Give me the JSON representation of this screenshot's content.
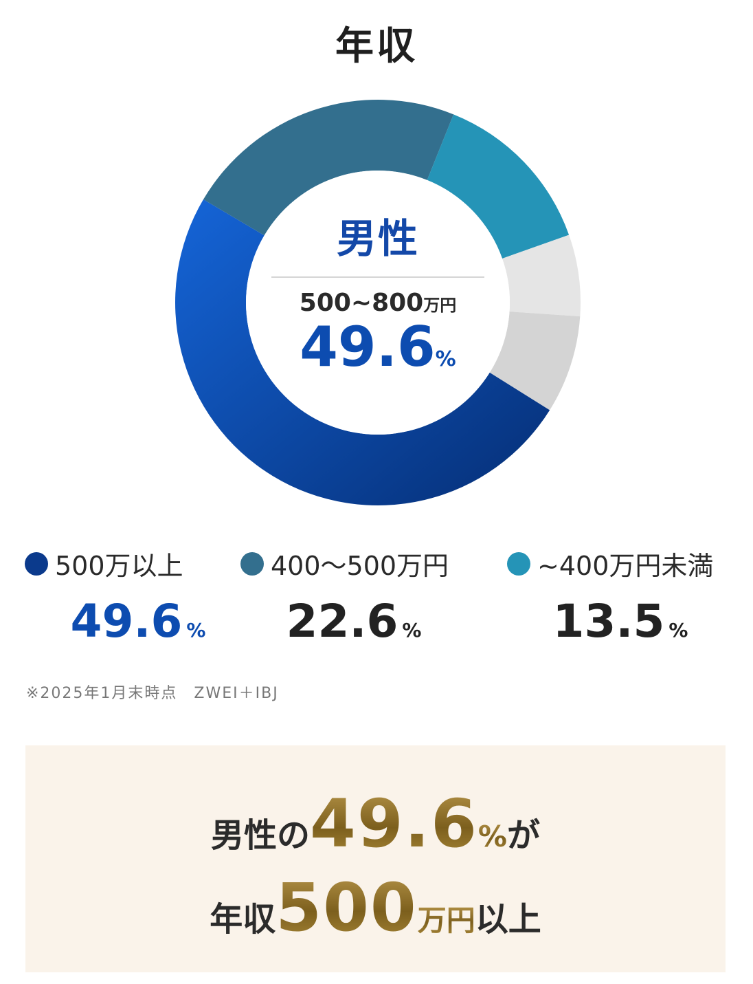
{
  "page": {
    "title": "年収"
  },
  "chart_data": {
    "type": "pie",
    "variant": "donut",
    "segments": [
      {
        "label": "500万以上",
        "value": 49.6,
        "color": "#0b3a8c",
        "legend": true
      },
      {
        "label": "400〜500万円",
        "value": 22.6,
        "color": "#336f8e",
        "legend": true
      },
      {
        "label": "~400万円未満",
        "value": 13.5,
        "color": "#2594b7",
        "legend": true
      },
      {
        "label": "",
        "value": 6.5,
        "color": "#e5e5e5",
        "legend": false
      },
      {
        "label": "",
        "value": 7.8,
        "color": "#d4d4d4",
        "legend": false
      }
    ]
  },
  "center": {
    "gender": "男性",
    "range": "500~800",
    "range_unit": "万円",
    "percent": "49.6",
    "percent_unit": "%"
  },
  "legend": {
    "items": [
      {
        "label": "500万以上",
        "value": "49.6",
        "unit": "%",
        "dot_color": "#0b3a8c",
        "value_color": "#0d4cb0"
      },
      {
        "label": "400〜500万円",
        "value": "22.6",
        "unit": "%",
        "dot_color": "#336f8e",
        "value_color": "#222222"
      },
      {
        "label": "~400万円未満",
        "value": "13.5",
        "unit": "%",
        "dot_color": "#2594b7",
        "value_color": "#222222"
      }
    ]
  },
  "note": "※2025年1月末時点　ZWEI＋IBJ",
  "highlight": {
    "line1_pre": "男性の",
    "line1_num": "49.6",
    "line1_unit": "%",
    "line1_post": "が",
    "line2_pre": "年収",
    "line2_num": "500",
    "line2_unit": "万円",
    "line2_post": "以上"
  }
}
